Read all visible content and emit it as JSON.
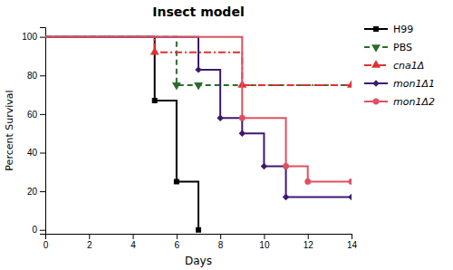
{
  "chart_data": {
    "type": "line",
    "title": "Insect model",
    "xlabel": "Days",
    "ylabel": "Percent Survival",
    "xlim": [
      0,
      14
    ],
    "ylim": [
      -2,
      105
    ],
    "xticks": [
      0,
      2,
      4,
      6,
      8,
      10,
      12,
      14
    ],
    "yticks": [
      0,
      20,
      40,
      60,
      80,
      100
    ],
    "grid": false,
    "legend": "right",
    "series": [
      {
        "name": "H99",
        "color": "#000000",
        "line_style": "solid",
        "marker": "square",
        "x": [
          0,
          5,
          5,
          6,
          6,
          7,
          7
        ],
        "values": [
          100,
          100,
          67,
          67,
          25,
          25,
          0
        ],
        "marker_x": [
          5,
          6,
          7
        ],
        "marker_values": [
          67,
          25,
          0
        ]
      },
      {
        "name": "PBS",
        "color": "#2d6a2d",
        "line_style": "dashed",
        "marker": "triangle-down",
        "x": [
          0,
          6,
          6,
          7,
          7,
          14
        ],
        "values": [
          100,
          100,
          75,
          75,
          75,
          75
        ],
        "marker_x": [
          6,
          7
        ],
        "marker_values": [
          75,
          75
        ]
      },
      {
        "name": "cna1Δ",
        "color": "#e03030",
        "line_style": "dashdot",
        "marker": "triangle-up",
        "x": [
          0,
          5,
          5,
          7,
          7,
          9,
          9,
          14
        ],
        "values": [
          100,
          100,
          92,
          92,
          92,
          92,
          75,
          75
        ],
        "marker_x": [
          5,
          9,
          14
        ],
        "marker_values": [
          92,
          75,
          75
        ]
      },
      {
        "name": "mon1Δ1",
        "color": "#3d1a6e",
        "line_style": "solid",
        "marker": "diamond",
        "x": [
          0,
          7,
          7,
          8,
          8,
          9,
          9,
          10,
          10,
          11,
          11,
          14
        ],
        "values": [
          100,
          100,
          83,
          83,
          58,
          58,
          50,
          50,
          33,
          33,
          17,
          17
        ],
        "marker_x": [
          7,
          8,
          9,
          10,
          11,
          14
        ],
        "marker_values": [
          83,
          58,
          50,
          33,
          17,
          17
        ]
      },
      {
        "name": "mon1Δ2",
        "color": "#e05060",
        "line_style": "solid",
        "marker": "circle",
        "x": [
          0,
          7,
          7,
          9,
          9,
          11,
          11,
          12,
          12,
          14
        ],
        "values": [
          100,
          100,
          100,
          100,
          58,
          58,
          33,
          33,
          25,
          25
        ],
        "marker_x": [
          9,
          11,
          12,
          14
        ],
        "marker_values": [
          58,
          33,
          25,
          25
        ]
      }
    ]
  }
}
